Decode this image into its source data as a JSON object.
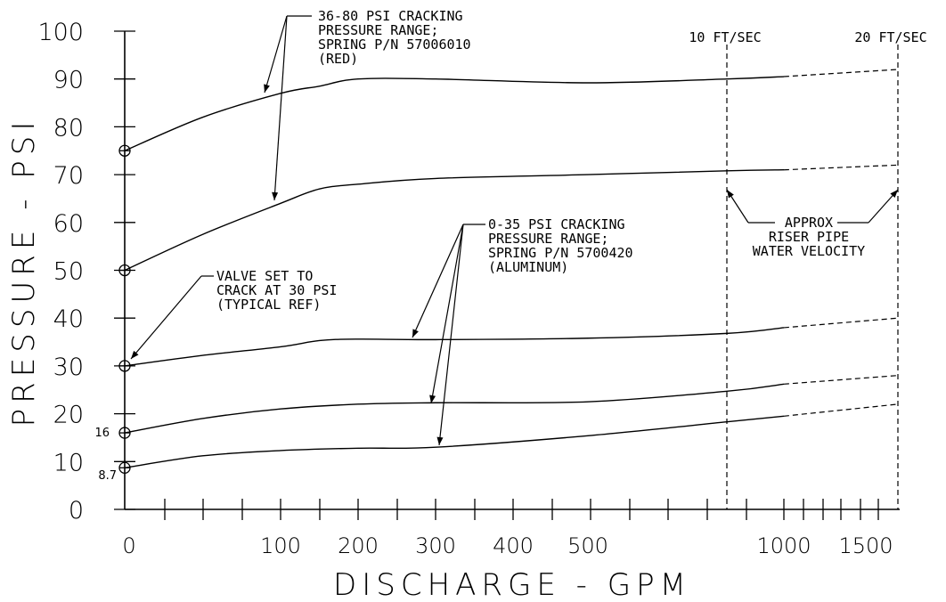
{
  "chart_data": {
    "type": "line",
    "xlabel": "DISCHARGE - GPM",
    "ylabel": "PRESSURE - PSI",
    "xscale": "log-like (custom)",
    "xlim": [
      0,
      1700
    ],
    "ylim": [
      0,
      100
    ],
    "xticks": [
      "0",
      "100",
      "200",
      "300",
      "400",
      "500",
      "1000",
      "1500"
    ],
    "yticks": [
      "0",
      "10",
      "20",
      "30",
      "40",
      "50",
      "60",
      "70",
      "80",
      "90",
      "100"
    ],
    "start_labels": [
      "16",
      "8.7"
    ],
    "series": [
      {
        "start_marker": 75,
        "points": [
          [
            0,
            75
          ],
          [
            50,
            82
          ],
          [
            100,
            87
          ],
          [
            150,
            88.5
          ],
          [
            200,
            90
          ],
          [
            300,
            90
          ],
          [
            500,
            89.2
          ],
          [
            800,
            90
          ],
          [
            1000,
            90.5
          ],
          [
            1700,
            92
          ]
        ]
      },
      {
        "start_marker": 50,
        "points": [
          [
            0,
            50
          ],
          [
            50,
            57.5
          ],
          [
            100,
            64
          ],
          [
            150,
            67
          ],
          [
            200,
            68
          ],
          [
            300,
            69.2
          ],
          [
            500,
            70
          ],
          [
            800,
            70.8
          ],
          [
            1000,
            71
          ],
          [
            1700,
            72
          ]
        ]
      },
      {
        "start_marker": 30,
        "points": [
          [
            0,
            30
          ],
          [
            50,
            32.2
          ],
          [
            100,
            34
          ],
          [
            150,
            35.3
          ],
          [
            200,
            35.6
          ],
          [
            300,
            35.5
          ],
          [
            500,
            35.8
          ],
          [
            800,
            36.8
          ],
          [
            1000,
            38
          ],
          [
            1700,
            40
          ]
        ]
      },
      {
        "start_marker": 16,
        "points": [
          [
            0,
            16
          ],
          [
            50,
            19
          ],
          [
            100,
            21
          ],
          [
            200,
            22
          ],
          [
            300,
            22.3
          ],
          [
            500,
            22.5
          ],
          [
            800,
            24.7
          ],
          [
            1000,
            26.2
          ],
          [
            1700,
            28
          ]
        ]
      },
      {
        "start_marker": 8.7,
        "points": [
          [
            0,
            8.7
          ],
          [
            50,
            11.2
          ],
          [
            100,
            12.3
          ],
          [
            200,
            12.8
          ],
          [
            300,
            13
          ],
          [
            500,
            15.4
          ],
          [
            800,
            18.3
          ],
          [
            1000,
            19.5
          ],
          [
            1700,
            22
          ]
        ]
      }
    ],
    "solid_until_gpm": 1000,
    "velocity_lines": [
      {
        "label": "10 FT/SEC",
        "gpm": 800
      },
      {
        "label": "20 FT/SEC",
        "gpm": 1700
      }
    ],
    "annotations": {
      "red_range": [
        "36-80 PSI CRACKING",
        "PRESSURE RANGE;",
        "SPRING P/N 57006010",
        "(RED)"
      ],
      "aluminum_range": [
        "0-35 PSI CRACKING",
        "PRESSURE RANGE;",
        "SPRING P/N 5700420",
        "(ALUMINUM)"
      ],
      "valve_set": [
        "VALVE SET TO",
        "CRACK AT 30 PSI",
        "(TYPICAL REF)"
      ],
      "velocity": [
        "APPROX",
        "RISER PIPE",
        "WATER VELOCITY"
      ]
    }
  }
}
